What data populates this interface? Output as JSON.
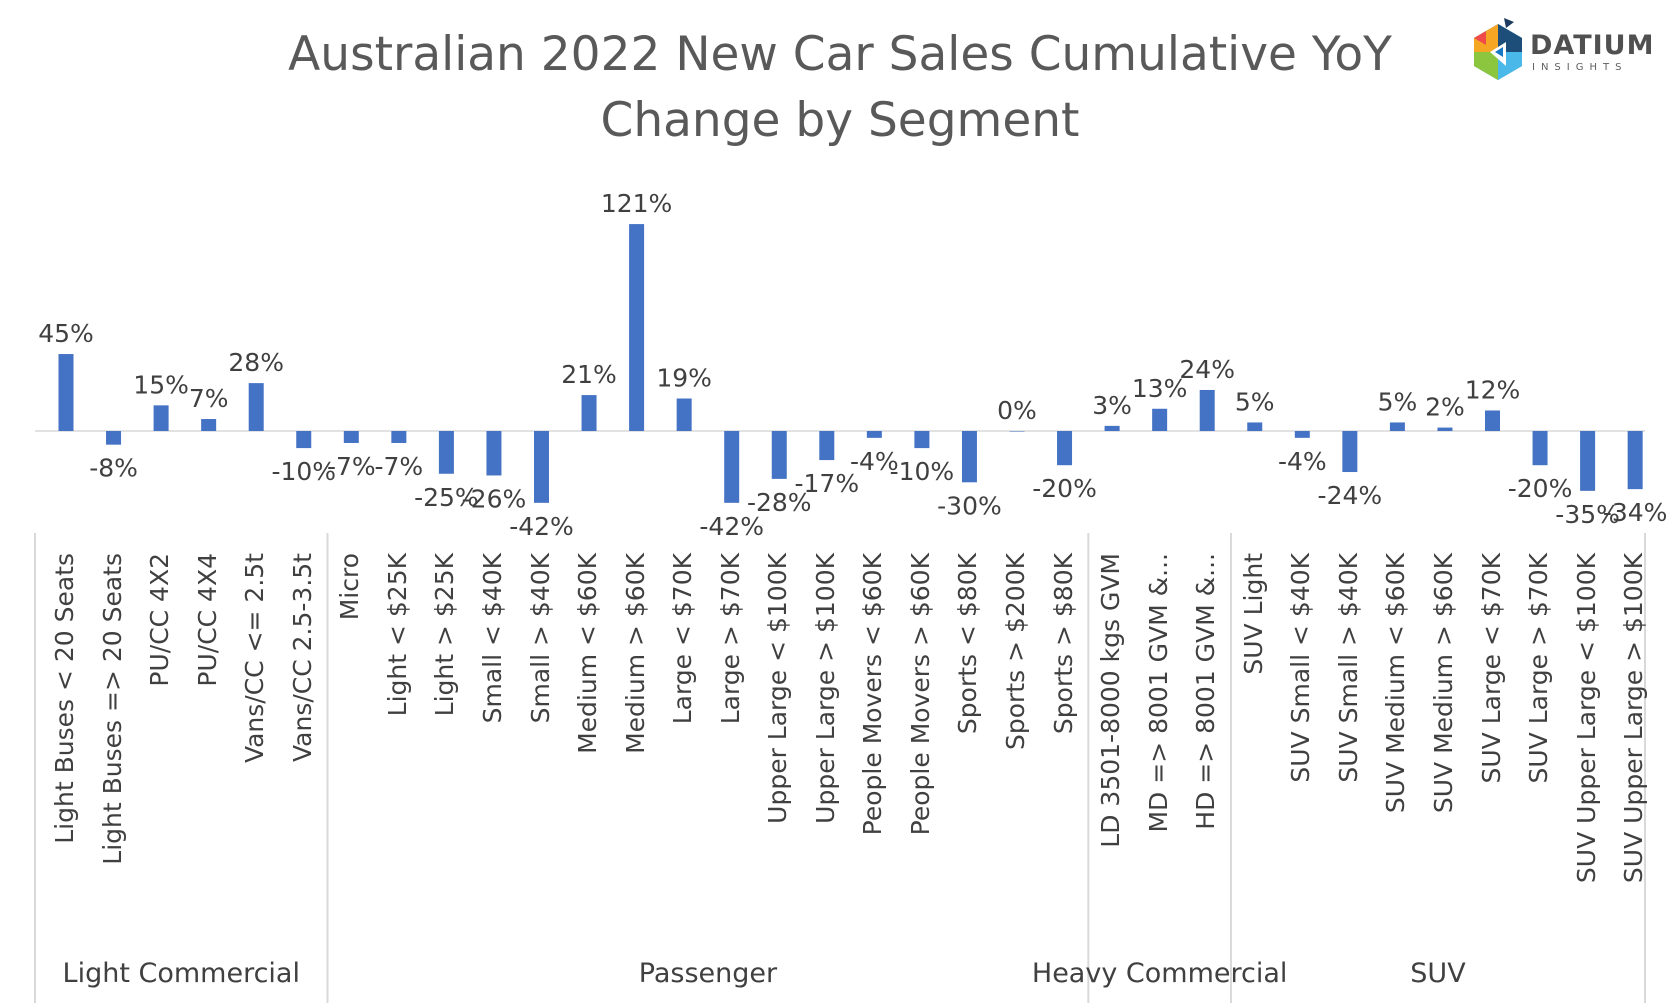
{
  "chart_data": {
    "type": "bar",
    "title": "Australian 2022 New Car Sales Cumulative YoY Change by Segment",
    "title_lines": [
      "Australian 2022 New Car Sales Cumulative YoY",
      "Change by Segment"
    ],
    "bar_color": "#4472C4",
    "value_format": "percent",
    "groups": [
      {
        "name": "Light Commercial",
        "categories": [
          "Light Buses < 20 Seats",
          "Light Buses => 20 Seats",
          "PU/CC 4X2",
          "PU/CC 4X4",
          "Vans/CC <= 2.5t",
          "Vans/CC 2.5-3.5t"
        ],
        "values": [
          45,
          -8,
          15,
          7,
          28,
          -10
        ]
      },
      {
        "name": "Passenger",
        "categories": [
          "Micro",
          "Light < $25K",
          "Light > $25K",
          "Small < $40K",
          "Small > $40K",
          "Medium < $60K",
          "Medium > $60K",
          "Large < $70K",
          "Large > $70K",
          "Upper Large < $100K",
          "Upper Large > $100K",
          "People Movers < $60K",
          "People Movers > $60K",
          "Sports < $80K",
          "Sports > $200K",
          "Sports > $80K"
        ],
        "values": [
          -7,
          -7,
          -25,
          -26,
          -42,
          21,
          121,
          19,
          -42,
          -28,
          -17,
          -4,
          -10,
          -30,
          0,
          -20
        ]
      },
      {
        "name": "Heavy Commercial",
        "categories": [
          "LD 3501-8000 kgs GVM",
          "MD => 8001 GVM &...",
          "HD => 8001 GVM &..."
        ],
        "values": [
          3,
          13,
          24
        ]
      },
      {
        "name": "SUV",
        "categories": [
          "SUV Light",
          "SUV Small < $40K",
          "SUV Small > $40K",
          "SUV Medium < $60K",
          "SUV Medium > $60K",
          "SUV Large < $70K",
          "SUV Large > $70K",
          "SUV Upper Large < $100K",
          "SUV Upper Large > $100K"
        ],
        "values": [
          5,
          -4,
          -24,
          5,
          2,
          12,
          -20,
          -35,
          -34
        ]
      }
    ],
    "grid": false,
    "legend": "none"
  },
  "logo": {
    "name": "DATIUM",
    "sub": "INSIGHTS"
  }
}
